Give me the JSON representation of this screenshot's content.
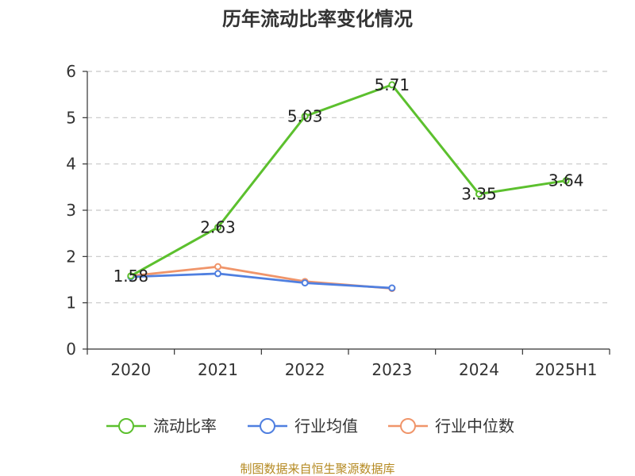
{
  "chart_data": {
    "type": "line",
    "title": "历年流动比率变化情况",
    "categories": [
      "2020",
      "2021",
      "2022",
      "2023",
      "2024",
      "2025H1"
    ],
    "ylim": [
      0,
      6
    ],
    "yticks": [
      "0",
      "1",
      "2",
      "3",
      "4",
      "5",
      "6"
    ],
    "grid": true,
    "legend_position": "bottom",
    "series": [
      {
        "name": "流动比率",
        "color": "#5cc02e",
        "values": [
          1.58,
          2.63,
          5.03,
          5.71,
          3.35,
          3.64
        ],
        "labels": [
          "1.58",
          "2.63",
          "5.03",
          "5.71",
          "3.35",
          "3.64"
        ]
      },
      {
        "name": "行业均值",
        "color": "#4f7fe0",
        "values": [
          1.56,
          1.63,
          1.43,
          1.32,
          null,
          null
        ]
      },
      {
        "name": "行业中位数",
        "color": "#f0956a",
        "values": [
          1.58,
          1.78,
          1.46,
          1.31,
          null,
          null
        ]
      }
    ]
  },
  "source": "制图数据来自恒生聚源数据库"
}
